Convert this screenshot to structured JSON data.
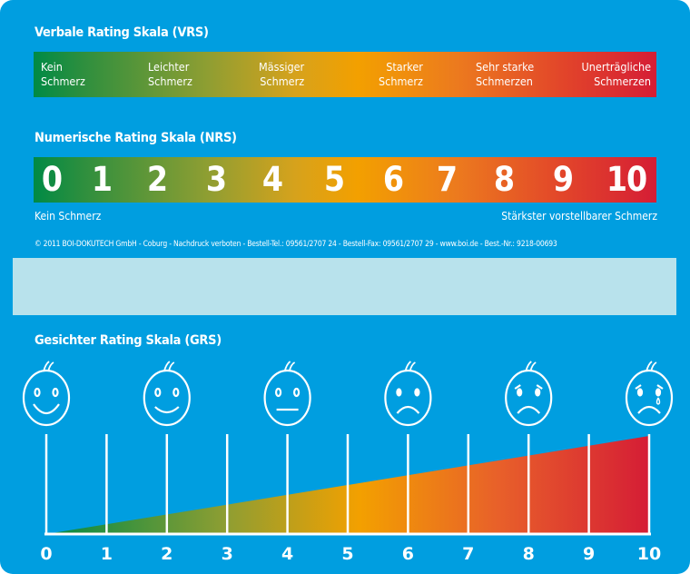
{
  "vrs": {
    "title": "Verbale Rating Skala (VRS)",
    "labels": [
      [
        "Kein",
        "Schmerz"
      ],
      [
        "Leichter",
        "Schmerz"
      ],
      [
        "Mässiger",
        "Schmerz"
      ],
      [
        "Starker",
        "Schmerz"
      ],
      [
        "Sehr starke",
        "Schmerzen"
      ],
      [
        "Unerträgliche",
        "Schmerzen"
      ]
    ]
  },
  "nrs": {
    "title": "Numerische Rating Skala (NRS)",
    "digits": [
      "0",
      "1",
      "2",
      "3",
      "4",
      "5",
      "6",
      "7",
      "8",
      "9",
      "10"
    ],
    "min_label": "Kein Schmerz",
    "max_label": "Stärkster vorstellbarer Schmerz"
  },
  "copyright": "© 2011 BOI-DOKUTECH GmbH - Coburg - Nachdruck verboten - Bestell-Tel.: 09561/2707 24 - Bestell-Fax: 09561/2707 29 - www.boi.de - Best.-Nr.: 9218-00693",
  "grs": {
    "title": "Gesichter Rating Skala (GRS)",
    "faces": [
      "very-happy",
      "happy",
      "neutral",
      "sad",
      "very-sad",
      "crying"
    ],
    "ticks": [
      "0",
      "1",
      "2",
      "3",
      "4",
      "5",
      "6",
      "7",
      "8",
      "9",
      "10"
    ]
  },
  "colors": {
    "background": "#009ee0",
    "green": "#008a45",
    "orange": "#f3a000",
    "red": "#d51d35"
  }
}
